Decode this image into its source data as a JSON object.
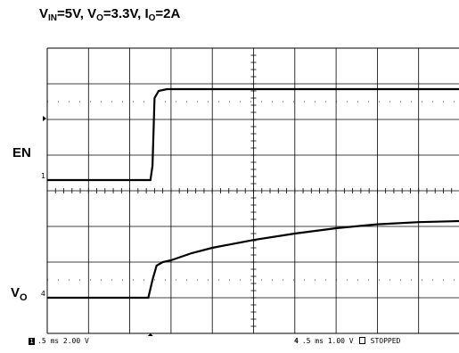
{
  "chart_data": {
    "type": "line",
    "title": "VIN=5V, VO=3.3V, IO=2A",
    "x_divisions": 10,
    "y_divisions": 8,
    "grid": true,
    "series": [
      {
        "name": "EN",
        "channel": "1",
        "scale": "2.00 V",
        "x": [
          0,
          2.5,
          2.55,
          2.6,
          2.7,
          2.9,
          3.2,
          4,
          5,
          6,
          7,
          8,
          9,
          10
        ],
        "y": [
          0,
          0,
          0.4,
          2.3,
          2.5,
          2.55,
          2.55,
          2.55,
          2.55,
          2.55,
          2.55,
          2.55,
          2.55,
          2.55
        ]
      },
      {
        "name": "VO",
        "channel": "4",
        "scale": "1.00 V",
        "x": [
          0,
          2.45,
          2.55,
          2.65,
          2.8,
          3.0,
          3.5,
          4,
          5,
          6,
          7,
          8,
          9,
          10
        ],
        "y": [
          0,
          0,
          0.5,
          0.9,
          1.0,
          1.05,
          1.25,
          1.4,
          1.62,
          1.8,
          1.95,
          2.06,
          2.12,
          2.15
        ]
      }
    ],
    "timebase": ".5 ms",
    "status": "STOPPED"
  },
  "labels": {
    "title_v": "V",
    "title_in": "IN",
    "title_eq1": "=5V, V",
    "title_o": "O",
    "title_eq2": "=3.3V, I",
    "title_o2": "O",
    "title_eq3": "=2A",
    "en": "EN",
    "vo_v": "V",
    "vo_o": "O"
  },
  "footer": {
    "ch1": "1",
    "ch1_text": ".5 ms 2.00 V",
    "ch4": "4",
    "ch4_text": ".5 ms 1.00 V",
    "status": "STOPPED"
  }
}
